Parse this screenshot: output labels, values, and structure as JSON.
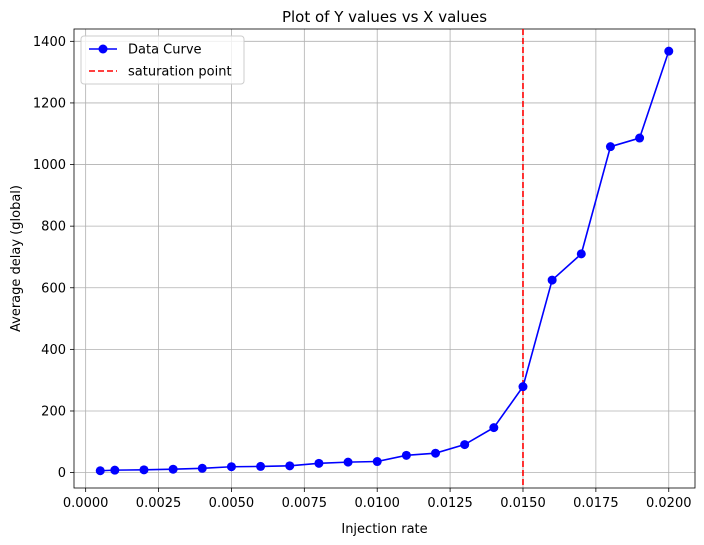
{
  "chart_data": {
    "type": "line",
    "title": "Plot of Y values vs X values",
    "xlabel": "Injection rate",
    "ylabel": "Average delay (global)",
    "xlim": [
      -0.0004,
      0.0209
    ],
    "ylim": [
      -50,
      1440
    ],
    "x_ticks": [
      0.0,
      0.0025,
      0.005,
      0.0075,
      0.01,
      0.0125,
      0.015,
      0.0175,
      0.02
    ],
    "x_tick_labels": [
      "0.0000",
      "0.0025",
      "0.0050",
      "0.0075",
      "0.0100",
      "0.0125",
      "0.0150",
      "0.0175",
      "0.0200"
    ],
    "y_ticks": [
      0,
      200,
      400,
      600,
      800,
      1000,
      1200,
      1400
    ],
    "y_tick_labels": [
      "0",
      "200",
      "400",
      "600",
      "800",
      "1000",
      "1200",
      "1400"
    ],
    "grid": true,
    "legend_position": "top-left",
    "series": [
      {
        "name": "Data Curve",
        "color": "#0000ff",
        "style": "solid-with-circle-markers",
        "x": [
          0.0005,
          0.001,
          0.002,
          0.003,
          0.004,
          0.005,
          0.006,
          0.007,
          0.008,
          0.009,
          0.01,
          0.011,
          0.012,
          0.013,
          0.014,
          0.015,
          0.016,
          0.017,
          0.018,
          0.019,
          0.02
        ],
        "y": [
          6,
          8,
          9,
          11,
          14,
          19,
          20,
          22,
          30,
          34,
          36,
          56,
          63,
          91,
          146,
          279,
          625,
          710,
          1058,
          1086,
          1368
        ]
      }
    ],
    "reference_lines": [
      {
        "name": "saturation point",
        "orientation": "vertical",
        "x": 0.015,
        "color": "#ff0000",
        "style": "dashed"
      }
    ]
  }
}
